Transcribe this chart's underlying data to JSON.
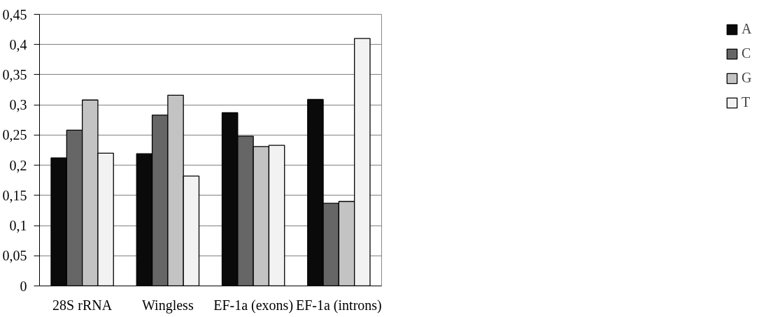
{
  "chart_data": {
    "type": "bar",
    "categories": [
      "28S rRNA",
      "Wingless",
      "EF-1a (exons)",
      "EF-1a (introns)"
    ],
    "series": [
      {
        "name": "A",
        "color": "#0a0a0a",
        "values": [
          0.212,
          0.219,
          0.287,
          0.309
        ]
      },
      {
        "name": "C",
        "color": "#666666",
        "values": [
          0.258,
          0.283,
          0.248,
          0.137
        ]
      },
      {
        "name": "G",
        "color": "#c3c3c3",
        "values": [
          0.308,
          0.316,
          0.231,
          0.14
        ]
      },
      {
        "name": "T",
        "color": "#f2f2f2",
        "values": [
          0.22,
          0.182,
          0.233,
          0.41
        ]
      }
    ],
    "ylim": [
      0,
      0.45
    ],
    "yticks": [
      0,
      {
        "value": 0.05,
        "label": "0,05"
      },
      {
        "value": 0.1,
        "label": "0,1"
      },
      {
        "value": 0.15,
        "label": "0,15"
      },
      {
        "value": 0.2,
        "label": "0,2"
      },
      {
        "value": 0.25,
        "label": "0,25"
      },
      {
        "value": 0.3,
        "label": "0,3"
      },
      {
        "value": 0.35,
        "label": "0,35"
      },
      {
        "value": 0.4,
        "label": "0,4"
      },
      {
        "value": 0.45,
        "label": "0,45"
      }
    ],
    "grid": "y",
    "legend": "right"
  }
}
